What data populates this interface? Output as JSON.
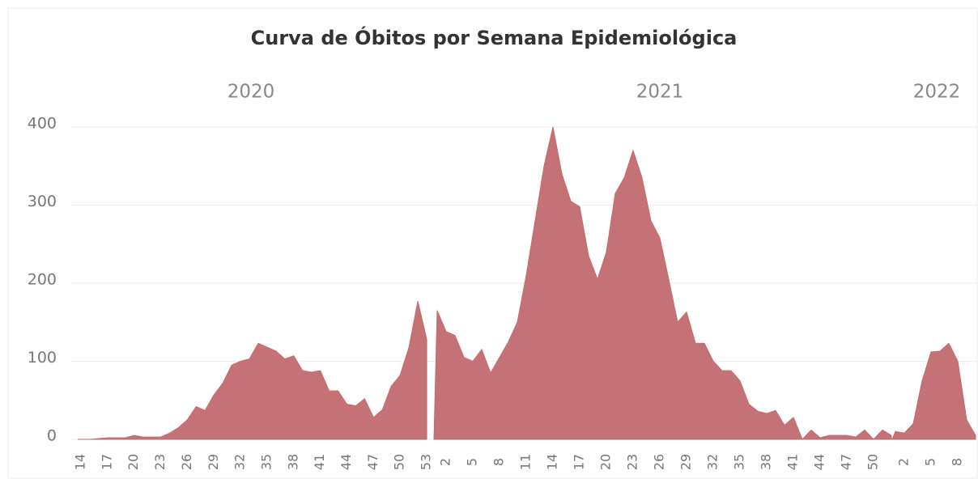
{
  "title": "Curva de Óbitos por Semana Epidemiológica",
  "chart_data": [
    {
      "type": "area",
      "title": "2020",
      "color": "#c26a6f",
      "ylim": [
        0,
        400
      ],
      "yticks": [
        0,
        100,
        200,
        300,
        400
      ],
      "grid": true,
      "categories": [
        14,
        null,
        null,
        17,
        null,
        null,
        20,
        null,
        null,
        23,
        null,
        null,
        26,
        null,
        null,
        29,
        null,
        null,
        32,
        null,
        null,
        35,
        null,
        null,
        38,
        null,
        null,
        41,
        null,
        null,
        44,
        null,
        null,
        47,
        null,
        null,
        50,
        null,
        null,
        53
      ],
      "values": [
        0,
        0,
        1,
        2,
        2,
        2,
        5,
        3,
        3,
        3,
        8,
        15,
        25,
        42,
        37,
        57,
        72,
        95,
        100,
        103,
        123,
        118,
        113,
        103,
        107,
        88,
        86,
        88,
        62,
        62,
        45,
        43,
        52,
        28,
        38,
        68,
        82,
        118,
        177,
        128
      ]
    },
    {
      "type": "area",
      "title": "2021",
      "color": "#c26a6f",
      "ylim": [
        0,
        400
      ],
      "categories": [
        null,
        2,
        null,
        null,
        5,
        null,
        null,
        8,
        null,
        null,
        11,
        null,
        null,
        14,
        null,
        null,
        17,
        null,
        null,
        20,
        null,
        null,
        23,
        null,
        null,
        26,
        null,
        null,
        29,
        null,
        null,
        32,
        null,
        null,
        35,
        null,
        null,
        38,
        null,
        null,
        41,
        null,
        null,
        44,
        null,
        null,
        47,
        null,
        null,
        50,
        null,
        null
      ],
      "values": [
        165,
        138,
        133,
        105,
        100,
        115,
        85,
        105,
        125,
        150,
        210,
        280,
        350,
        400,
        340,
        305,
        298,
        235,
        205,
        240,
        315,
        335,
        370,
        335,
        280,
        258,
        205,
        150,
        163,
        123,
        123,
        100,
        88,
        88,
        75,
        45,
        36,
        33,
        37,
        18,
        28,
        0,
        12,
        2,
        5,
        5,
        5,
        3,
        12,
        0,
        12,
        5
      ]
    },
    {
      "type": "area",
      "title": "2022",
      "color": "#c26a6f",
      "ylim": [
        0,
        400
      ],
      "categories": [
        null,
        2,
        null,
        null,
        5,
        null,
        null,
        8,
        null,
        null
      ],
      "values": [
        10,
        8,
        20,
        75,
        112,
        113,
        123,
        100,
        25,
        5
      ]
    }
  ]
}
